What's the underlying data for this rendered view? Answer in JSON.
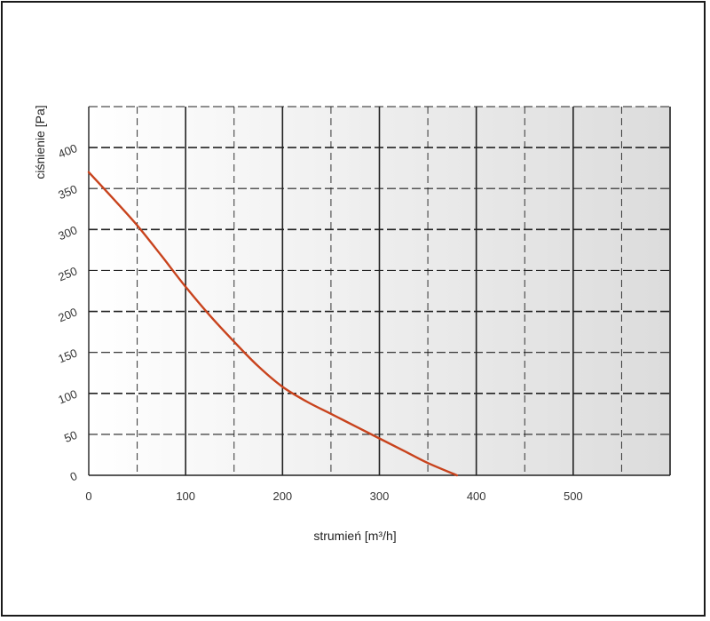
{
  "chart_data": {
    "type": "line",
    "xlabel": "strumień [m³/h]",
    "ylabel": "ciśnienie [Pa]",
    "xlim": [
      0,
      600
    ],
    "ylim": [
      0,
      450
    ],
    "x_ticks": [
      0,
      100,
      200,
      300,
      400,
      500
    ],
    "y_ticks": [
      0,
      50,
      100,
      150,
      200,
      250,
      300,
      350,
      400
    ],
    "grid": true,
    "series": [
      {
        "color": "#c8431d",
        "x": [
          0,
          25,
          50,
          75,
          100,
          125,
          150,
          175,
          200,
          225,
          250,
          275,
          300,
          325,
          350,
          380
        ],
        "y": [
          370,
          338,
          305,
          268,
          230,
          195,
          163,
          133,
          108,
          90,
          75,
          60,
          45,
          30,
          15,
          0
        ]
      }
    ]
  }
}
